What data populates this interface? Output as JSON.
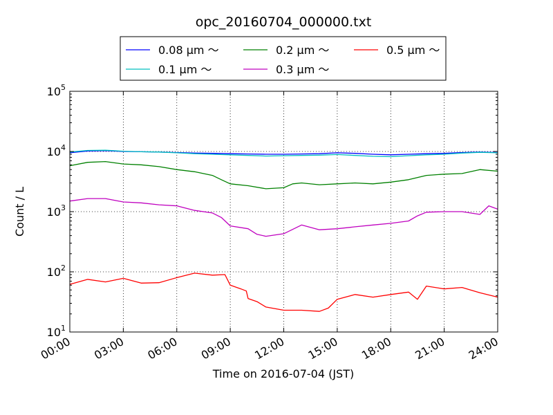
{
  "chart_data": {
    "type": "line",
    "title": "opc_20160704_000000.txt",
    "xlabel": "Time on 2016-07-04 (JST)",
    "ylabel": "Count / L",
    "yscale": "log",
    "xlim": [
      0,
      24
    ],
    "ylim": [
      10,
      100000
    ],
    "grid": true,
    "legend_position": "top",
    "x_ticks": [
      {
        "value": 0,
        "label": "00:00"
      },
      {
        "value": 3,
        "label": "03:00"
      },
      {
        "value": 6,
        "label": "06:00"
      },
      {
        "value": 9,
        "label": "09:00"
      },
      {
        "value": 12,
        "label": "12:00"
      },
      {
        "value": 15,
        "label": "15:00"
      },
      {
        "value": 18,
        "label": "18:00"
      },
      {
        "value": 21,
        "label": "21:00"
      },
      {
        "value": 24,
        "label": "24:00"
      }
    ],
    "y_ticks": [
      {
        "value": 10,
        "base": "10",
        "exp": "1"
      },
      {
        "value": 100,
        "base": "10",
        "exp": "2"
      },
      {
        "value": 1000,
        "base": "10",
        "exp": "3"
      },
      {
        "value": 10000,
        "base": "10",
        "exp": "4"
      },
      {
        "value": 100000,
        "base": "10",
        "exp": "5"
      }
    ],
    "series": [
      {
        "name": "0.08 μm ～",
        "color": "#0000ff",
        "points": [
          [
            0,
            9500
          ],
          [
            1,
            10200
          ],
          [
            2,
            10300
          ],
          [
            3,
            10000
          ],
          [
            4,
            9900
          ],
          [
            5,
            9800
          ],
          [
            6,
            9600
          ],
          [
            7,
            9400
          ],
          [
            8,
            9300
          ],
          [
            9,
            9200
          ],
          [
            10,
            9100
          ],
          [
            11,
            9000
          ],
          [
            12,
            9000
          ],
          [
            13,
            9100
          ],
          [
            14,
            9200
          ],
          [
            15,
            9500
          ],
          [
            16,
            9300
          ],
          [
            17,
            9000
          ],
          [
            18,
            8800
          ],
          [
            19,
            9000
          ],
          [
            20,
            9200
          ],
          [
            21,
            9300
          ],
          [
            22,
            9600
          ],
          [
            23,
            9800
          ],
          [
            24,
            9600
          ]
        ]
      },
      {
        "name": "0.1 μm ～",
        "color": "#00bfbf",
        "points": [
          [
            0,
            9800
          ],
          [
            1,
            10400
          ],
          [
            2,
            10500
          ],
          [
            3,
            10100
          ],
          [
            4,
            9900
          ],
          [
            5,
            9800
          ],
          [
            6,
            9500
          ],
          [
            7,
            9200
          ],
          [
            8,
            9000
          ],
          [
            9,
            8800
          ],
          [
            10,
            8600
          ],
          [
            11,
            8400
          ],
          [
            12,
            8500
          ],
          [
            13,
            8600
          ],
          [
            14,
            8700
          ],
          [
            15,
            8900
          ],
          [
            16,
            8600
          ],
          [
            17,
            8300
          ],
          [
            18,
            8200
          ],
          [
            19,
            8500
          ],
          [
            20,
            8800
          ],
          [
            21,
            9000
          ],
          [
            22,
            9400
          ],
          [
            23,
            9700
          ],
          [
            24,
            9500
          ]
        ]
      },
      {
        "name": "0.2 μm ～",
        "color": "#008000",
        "points": [
          [
            0,
            5800
          ],
          [
            1,
            6600
          ],
          [
            2,
            6800
          ],
          [
            3,
            6200
          ],
          [
            4,
            6000
          ],
          [
            5,
            5600
          ],
          [
            6,
            5000
          ],
          [
            7,
            4600
          ],
          [
            8,
            4000
          ],
          [
            8.5,
            3400
          ],
          [
            9,
            2900
          ],
          [
            10,
            2700
          ],
          [
            11,
            2400
          ],
          [
            12,
            2500
          ],
          [
            12.5,
            2900
          ],
          [
            13,
            3000
          ],
          [
            14,
            2800
          ],
          [
            15,
            2900
          ],
          [
            16,
            3000
          ],
          [
            17,
            2900
          ],
          [
            18,
            3100
          ],
          [
            19,
            3400
          ],
          [
            20,
            4000
          ],
          [
            21,
            4200
          ],
          [
            22,
            4300
          ],
          [
            23,
            5000
          ],
          [
            24,
            4700
          ]
        ]
      },
      {
        "name": "0.3 μm ～",
        "color": "#bf00bf",
        "points": [
          [
            0,
            1500
          ],
          [
            1,
            1650
          ],
          [
            2,
            1650
          ],
          [
            3,
            1450
          ],
          [
            4,
            1400
          ],
          [
            5,
            1300
          ],
          [
            6,
            1250
          ],
          [
            7,
            1050
          ],
          [
            8,
            950
          ],
          [
            8.5,
            800
          ],
          [
            9,
            580
          ],
          [
            10,
            520
          ],
          [
            10.5,
            420
          ],
          [
            11,
            390
          ],
          [
            12,
            430
          ],
          [
            13,
            600
          ],
          [
            14,
            500
          ],
          [
            15,
            520
          ],
          [
            16,
            560
          ],
          [
            17,
            600
          ],
          [
            18,
            640
          ],
          [
            19,
            700
          ],
          [
            19.5,
            850
          ],
          [
            20,
            980
          ],
          [
            21,
            1000
          ],
          [
            22,
            1000
          ],
          [
            23,
            900
          ],
          [
            23.5,
            1250
          ],
          [
            24,
            1100
          ]
        ]
      },
      {
        "name": "0.5 μm ～",
        "color": "#ff0000",
        "points": [
          [
            0,
            62
          ],
          [
            1,
            75
          ],
          [
            2,
            68
          ],
          [
            3,
            78
          ],
          [
            4,
            65
          ],
          [
            5,
            66
          ],
          [
            6,
            80
          ],
          [
            7,
            95
          ],
          [
            8,
            88
          ],
          [
            8.7,
            90
          ],
          [
            9,
            60
          ],
          [
            9.6,
            52
          ],
          [
            9.9,
            48
          ],
          [
            10,
            36
          ],
          [
            10.5,
            32
          ],
          [
            11,
            26
          ],
          [
            12,
            23
          ],
          [
            13,
            23
          ],
          [
            14,
            22
          ],
          [
            14.5,
            25
          ],
          [
            15,
            35
          ],
          [
            16,
            42
          ],
          [
            17,
            38
          ],
          [
            18,
            42
          ],
          [
            19,
            46
          ],
          [
            19.5,
            35
          ],
          [
            20,
            58
          ],
          [
            21,
            52
          ],
          [
            22,
            55
          ],
          [
            23,
            45
          ],
          [
            24,
            38
          ]
        ]
      }
    ]
  }
}
